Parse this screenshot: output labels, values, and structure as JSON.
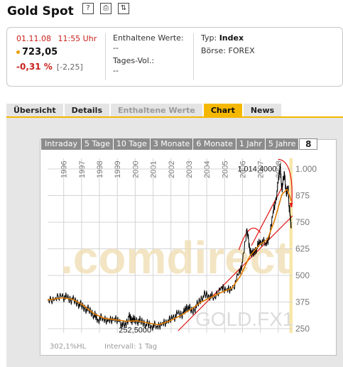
{
  "header": {
    "title": "Gold Spot",
    "icons": [
      "help-icon",
      "print-icon",
      "refresh-icon"
    ]
  },
  "quote": {
    "date": "01.11.08",
    "time": "11:55 Uhr",
    "price": "723,05",
    "change_pct": "-0,31 %",
    "change_abs": "[-2,25]",
    "contained_label": "Enthaltene Werte:",
    "contained_value": "--",
    "volume_label": "Tages-Vol.:",
    "volume_value": "--",
    "type_label": "Typ:",
    "type_value": "Index",
    "exchange_label": "Börse:",
    "exchange_value": "FOREX"
  },
  "tabs": [
    {
      "label": "Übersicht",
      "state": "normal"
    },
    {
      "label": "Details",
      "state": "normal"
    },
    {
      "label": "Enthaltene Werte",
      "state": "disabled"
    },
    {
      "label": "Chart",
      "state": "active"
    },
    {
      "label": "News",
      "state": "normal"
    }
  ],
  "range_tabs": [
    "Intraday",
    "5 Tage",
    "10 Tage",
    "3 Monate",
    "6 Monate",
    "1 Jahr",
    "5 Jahre"
  ],
  "range_icon_label": "8",
  "footer": {
    "perf": "302,1%HL",
    "interval": "Intervall: 1 Tag"
  },
  "watermark": {
    "brand": ".comdirect",
    "symbol": "GOLD.FX1"
  },
  "colors": {
    "accent": "#f5b800",
    "negative": "#c8201a",
    "price_line": "#000000",
    "avg_line": "#e07b00",
    "trend_line": "#e11010",
    "highlight_band": "#f7e7a8"
  },
  "chart_data": {
    "type": "line",
    "x_ticks": [
      "1996",
      "1997",
      "1998",
      "1999",
      "2000",
      "2001",
      "2002",
      "2003",
      "2004",
      "2005",
      "2006",
      "2007",
      "2008"
    ],
    "y_ticks": [
      "250",
      "375",
      "500",
      "625",
      "750",
      "875",
      "1.000"
    ],
    "ylim": [
      230,
      1050
    ],
    "xlim": [
      1995.2,
      2008.9
    ],
    "series": [
      {
        "values": [
          [
            1995.2,
            383
          ],
          [
            1995.6,
            386
          ],
          [
            1996.0,
            402
          ],
          [
            1996.3,
            393
          ],
          [
            1996.6,
            385
          ],
          [
            1996.9,
            370
          ],
          [
            1997.2,
            350
          ],
          [
            1997.5,
            338
          ],
          [
            1997.8,
            315
          ],
          [
            1998.0,
            295
          ],
          [
            1998.3,
            300
          ],
          [
            1998.6,
            290
          ],
          [
            1998.9,
            292
          ],
          [
            1999.2,
            283
          ],
          [
            1999.5,
            258
          ],
          [
            1999.75,
            305
          ],
          [
            1999.9,
            292
          ],
          [
            2000.1,
            290
          ],
          [
            2000.4,
            285
          ],
          [
            2000.7,
            272
          ],
          [
            2001.0,
            266
          ],
          [
            2001.3,
            262
          ],
          [
            2001.6,
            275
          ],
          [
            2001.9,
            280
          ],
          [
            2002.2,
            300
          ],
          [
            2002.5,
            318
          ],
          [
            2002.8,
            320
          ],
          [
            2003.0,
            355
          ],
          [
            2003.3,
            330
          ],
          [
            2003.6,
            365
          ],
          [
            2003.9,
            405
          ],
          [
            2004.2,
            410
          ],
          [
            2004.5,
            395
          ],
          [
            2004.9,
            445
          ],
          [
            2005.2,
            430
          ],
          [
            2005.5,
            430
          ],
          [
            2005.9,
            505
          ],
          [
            2006.1,
            560
          ],
          [
            2006.35,
            720
          ],
          [
            2006.5,
            620
          ],
          [
            2006.7,
            600
          ],
          [
            2006.9,
            630
          ],
          [
            2007.1,
            665
          ],
          [
            2007.4,
            650
          ],
          [
            2007.6,
            680
          ],
          [
            2007.8,
            790
          ],
          [
            2007.95,
            840
          ],
          [
            2008.1,
            940
          ],
          [
            2008.2,
            1014.4
          ],
          [
            2008.3,
            905
          ],
          [
            2008.45,
            980
          ],
          [
            2008.55,
            880
          ],
          [
            2008.65,
            920
          ],
          [
            2008.7,
            830
          ],
          [
            2008.76,
            790
          ],
          [
            2008.83,
            723
          ]
        ]
      },
      {
        "values": [
          [
            1995.2,
            384
          ],
          [
            1996.0,
            395
          ],
          [
            1996.6,
            388
          ],
          [
            1997.2,
            360
          ],
          [
            1997.8,
            320
          ],
          [
            1998.4,
            298
          ],
          [
            1999.0,
            292
          ],
          [
            1999.6,
            285
          ],
          [
            2000.2,
            287
          ],
          [
            2000.8,
            277
          ],
          [
            2001.4,
            268
          ],
          [
            2002.0,
            285
          ],
          [
            2002.6,
            310
          ],
          [
            2003.2,
            340
          ],
          [
            2003.8,
            375
          ],
          [
            2004.4,
            400
          ],
          [
            2004.9,
            420
          ],
          [
            2005.5,
            440
          ],
          [
            2006.0,
            500
          ],
          [
            2006.5,
            590
          ],
          [
            2007.0,
            640
          ],
          [
            2007.5,
            670
          ],
          [
            2007.9,
            760
          ],
          [
            2008.3,
            880
          ],
          [
            2008.6,
            905
          ],
          [
            2008.83,
            850
          ]
        ]
      }
    ],
    "annotations": [
      {
        "text": "1.014,4000",
        "x": 2008.2,
        "y": 1014.4
      },
      {
        "text": "252,5000",
        "x": 1999.5,
        "y": 252.5
      }
    ],
    "grid": true
  }
}
